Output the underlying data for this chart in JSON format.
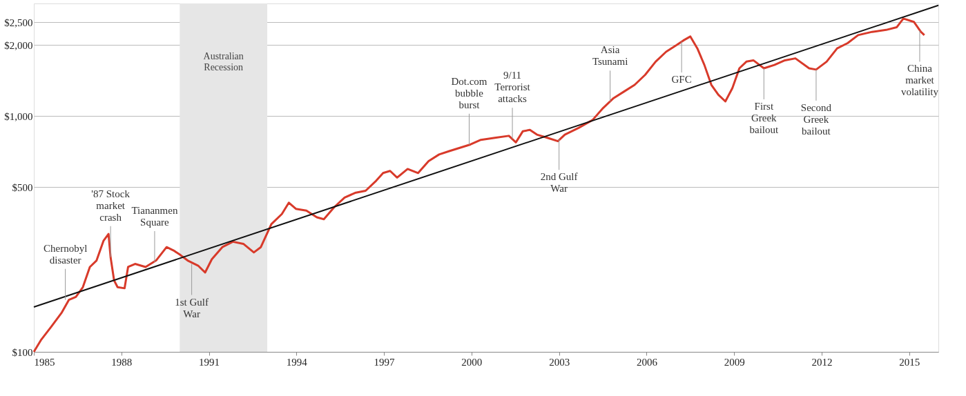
{
  "chart_data": {
    "type": "line",
    "log": "y",
    "grid": "y",
    "line_style": "solid",
    "marker": "none",
    "xlim": [
      1985,
      2016
    ],
    "ylim": [
      100,
      3000
    ],
    "xticks": [
      1985,
      1988,
      1991,
      1994,
      1997,
      2000,
      2003,
      2006,
      2009,
      2012,
      2015
    ],
    "yticks": [
      {
        "value": 100,
        "label": "$100"
      },
      {
        "value": 500,
        "label": "$500"
      },
      {
        "value": 1000,
        "label": "$1,000"
      },
      {
        "value": 2000,
        "label": "$2,000"
      },
      {
        "value": 2500,
        "label": "$2,500"
      }
    ],
    "series": [
      {
        "color": "#d83a2a",
        "x": [
          1985.0,
          1985.24,
          1985.6,
          1985.96,
          1986.2,
          1986.44,
          1986.68,
          1986.92,
          1987.15,
          1987.39,
          1987.56,
          1987.63,
          1987.75,
          1987.87,
          1988.11,
          1988.23,
          1988.47,
          1988.83,
          1989.19,
          1989.55,
          1989.79,
          1990.03,
          1990.27,
          1990.63,
          1990.87,
          1991.1,
          1991.46,
          1991.82,
          1992.18,
          1992.54,
          1992.78,
          1993.14,
          1993.5,
          1993.74,
          1993.98,
          1994.34,
          1994.7,
          1994.94,
          1995.29,
          1995.65,
          1996.01,
          1996.37,
          1996.73,
          1996.97,
          1997.21,
          1997.45,
          1997.81,
          1998.17,
          1998.53,
          1998.89,
          1999.24,
          1999.6,
          1999.96,
          2000.32,
          2000.8,
          2001.28,
          2001.52,
          2001.76,
          2002.0,
          2002.24,
          2002.6,
          2002.96,
          2003.2,
          2003.67,
          2004.15,
          2004.51,
          2004.87,
          2005.23,
          2005.59,
          2005.95,
          2006.31,
          2006.67,
          2007.03,
          2007.26,
          2007.5,
          2007.74,
          2007.98,
          2008.22,
          2008.46,
          2008.7,
          2008.94,
          2009.18,
          2009.42,
          2009.66,
          2010.02,
          2010.38,
          2010.74,
          2011.1,
          2011.57,
          2011.81,
          2012.17,
          2012.53,
          2012.89,
          2013.25,
          2013.73,
          2014.21,
          2014.57,
          2014.8,
          2015.16,
          2015.4,
          2015.52
        ],
        "values": [
          100,
          112,
          128,
          147,
          166,
          171,
          188,
          229,
          244,
          296,
          316,
          252,
          201,
          188,
          186,
          229,
          236,
          229,
          244,
          278,
          269,
          257,
          244,
          232,
          217,
          247,
          278,
          293,
          287,
          264,
          278,
          348,
          384,
          429,
          404,
          397,
          372,
          365,
          410,
          451,
          472,
          482,
          531,
          573,
          585,
          548,
          596,
          573,
          644,
          687,
          710,
          733,
          757,
          792,
          808,
          824,
          773,
          862,
          873,
          834,
          808,
          782,
          834,
          890,
          962,
          1081,
          1191,
          1270,
          1355,
          1494,
          1700,
          1872,
          1998,
          2090,
          2173,
          1934,
          1646,
          1355,
          1230,
          1153,
          1312,
          1593,
          1700,
          1722,
          1593,
          1646,
          1722,
          1755,
          1593,
          1573,
          1700,
          1934,
          2037,
          2203,
          2274,
          2317,
          2377,
          2588,
          2506,
          2274,
          2203
        ]
      },
      {
        "color": "#111111",
        "x": [
          1985,
          2016
        ],
        "values": [
          155,
          2945
        ]
      }
    ],
    "bands": [
      {
        "axis": "x",
        "from": 1990,
        "to": 1993,
        "label": "Australian\nRecession",
        "color": "#e6e6e6"
      }
    ],
    "annotations": [
      {
        "text": "Chernobyl\ndisaster",
        "x": 1986.08,
        "y": 166
      },
      {
        "text": "'87 Stock\nmarket\ncrash",
        "x": 1987.63,
        "y": 252
      },
      {
        "text": "Tiananmen\nSquare",
        "x": 1989.14,
        "y": 240
      },
      {
        "text": "1st Gulf\nWar",
        "x": 1990.41,
        "y": 236
      },
      {
        "text": "Dot.com\nbubble\nburst",
        "x": 1999.92,
        "y": 755
      },
      {
        "text": "9/11\nTerrorist\nattacks",
        "x": 2001.4,
        "y": 800
      },
      {
        "text": "2nd Gulf\nWar",
        "x": 2003.0,
        "y": 800
      },
      {
        "text": "Asia\nTsunami",
        "x": 2004.75,
        "y": 1150
      },
      {
        "text": "GFC",
        "x": 2007.2,
        "y": 2070
      },
      {
        "text": "First\nGreek\nbailout",
        "x": 2010.02,
        "y": 1593
      },
      {
        "text": "Second\nGreek\nbailout",
        "x": 2011.81,
        "y": 1573
      },
      {
        "text": "China\nmarket\nvolatility",
        "x": 2015.36,
        "y": 2300
      }
    ]
  }
}
